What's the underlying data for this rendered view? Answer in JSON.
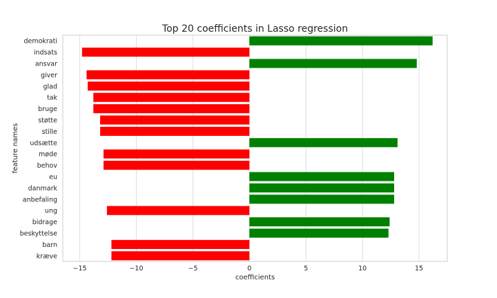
{
  "chart_data": {
    "type": "bar",
    "orientation": "horizontal",
    "title": "Top 20 coefficients in Lasso regression",
    "xlabel": "coefficients",
    "ylabel": "feature names",
    "categories": [
      "demokrati",
      "indsats",
      "ansvar",
      "giver",
      "glad",
      "tak",
      "bruge",
      "støtte",
      "stille",
      "udsætte",
      "møde",
      "behov",
      "eu",
      "danmark",
      "anbefaling",
      "ung",
      "bidrage",
      "beskyttelse",
      "barn",
      "kræve"
    ],
    "values": [
      16.2,
      -14.8,
      14.8,
      -14.4,
      -14.3,
      -13.8,
      -13.8,
      -13.2,
      -13.2,
      13.1,
      -12.9,
      -12.9,
      12.8,
      12.8,
      12.8,
      -12.6,
      12.4,
      12.3,
      -12.2,
      -12.2
    ],
    "xlim": [
      -16.5,
      17.5
    ],
    "xticks": [
      -15,
      -10,
      -5,
      0,
      5,
      10,
      15
    ],
    "xtick_labels": [
      "−15",
      "−10",
      "−5",
      "0",
      "5",
      "10",
      "15"
    ],
    "grid": "vertical",
    "colors": {
      "positive": "#008000",
      "negative": "#ff0000",
      "grid": "#dddddd",
      "frame": "#cccccc"
    }
  }
}
